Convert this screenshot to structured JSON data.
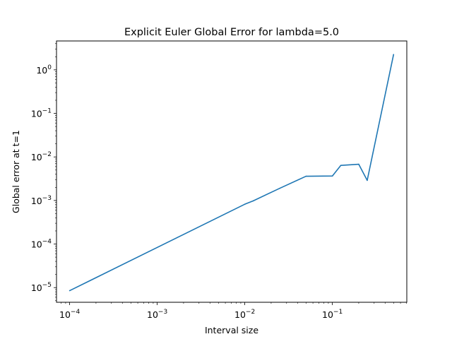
{
  "chart_data": {
    "type": "line",
    "title": "Explicit Euler Global Error for lambda=5.0",
    "xlabel": "Interval size",
    "ylabel": "Global error at t=1",
    "xscale": "log",
    "yscale": "log",
    "xlim": [
      7.08e-05,
      0.708
    ],
    "ylim": [
      4.6e-06,
      4.6
    ],
    "x_ticks": [
      {
        "value": 0.0001,
        "base": "10",
        "exp": "−4"
      },
      {
        "value": 0.001,
        "base": "10",
        "exp": "−3"
      },
      {
        "value": 0.01,
        "base": "10",
        "exp": "−2"
      },
      {
        "value": 0.1,
        "base": "10",
        "exp": "−1"
      }
    ],
    "y_ticks": [
      {
        "value": 1e-05,
        "base": "10",
        "exp": "−5"
      },
      {
        "value": 0.0001,
        "base": "10",
        "exp": "−4"
      },
      {
        "value": 0.001,
        "base": "10",
        "exp": "−3"
      },
      {
        "value": 0.01,
        "base": "10",
        "exp": "−2"
      },
      {
        "value": 0.1,
        "base": "10",
        "exp": "−1"
      },
      {
        "value": 1,
        "base": "10",
        "exp": "0"
      }
    ],
    "grid": false,
    "color": "#1f77b4",
    "series": [
      {
        "x": [
          0.0001,
          0.01,
          0.0125,
          0.025,
          0.05,
          0.1,
          0.125,
          0.2,
          0.25,
          0.5
        ],
        "y": [
          8.5e-06,
          0.00082,
          0.00098,
          0.0019,
          0.0036,
          0.00365,
          0.0064,
          0.0068,
          0.0029,
          2.25
        ]
      }
    ]
  }
}
